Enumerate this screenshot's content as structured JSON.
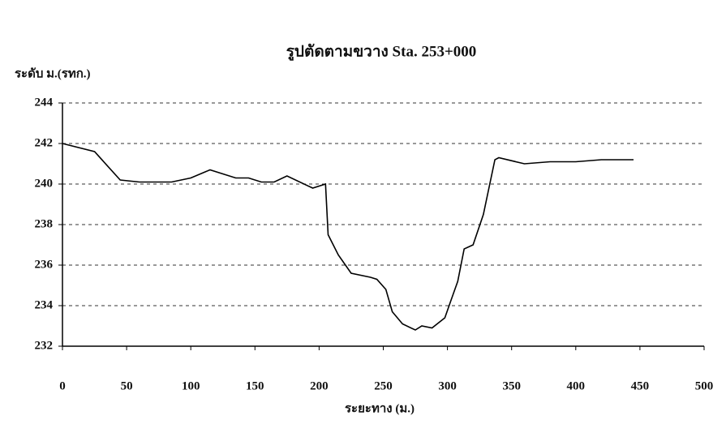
{
  "chart_data": {
    "type": "line",
    "title": "รูปตัดตามขวาง Sta. 253+000",
    "y_label": "ระดับ ม.(รทก.)",
    "x_label": "ระยะทาง (ม.)",
    "x": [
      0,
      25,
      45,
      60,
      85,
      100,
      115,
      135,
      145,
      155,
      165,
      175,
      195,
      205,
      207,
      215,
      225,
      240,
      245,
      252,
      257,
      265,
      275,
      280,
      288,
      298,
      303,
      308,
      313,
      320,
      328,
      337,
      340,
      360,
      380,
      400,
      420,
      445
    ],
    "values": [
      242.0,
      241.6,
      240.2,
      240.1,
      240.1,
      240.3,
      240.7,
      240.3,
      240.3,
      240.1,
      240.1,
      240.4,
      239.8,
      240.0,
      237.5,
      236.5,
      235.6,
      235.4,
      235.3,
      234.8,
      233.7,
      233.1,
      232.8,
      233.0,
      232.9,
      233.4,
      234.3,
      235.2,
      236.8,
      237.0,
      238.5,
      241.2,
      241.3,
      241.0,
      241.1,
      241.1,
      241.2,
      241.2
    ],
    "color": "#000000",
    "xlim": [
      0,
      500
    ],
    "xticks": [
      0,
      50,
      100,
      150,
      200,
      250,
      300,
      350,
      400,
      450,
      500
    ],
    "ylim": [
      232,
      244
    ],
    "yticks": [
      232,
      234,
      236,
      238,
      240,
      242,
      244
    ],
    "grid": true
  }
}
